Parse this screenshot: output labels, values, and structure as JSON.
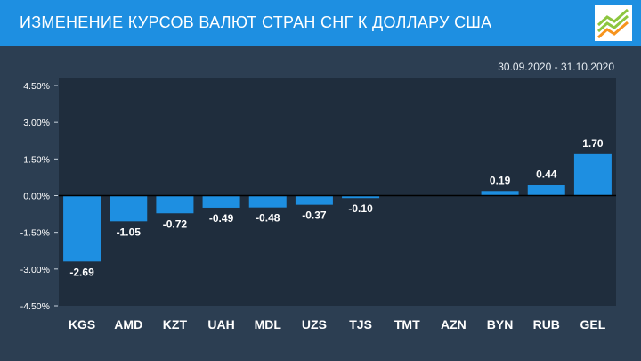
{
  "header": {
    "title": "ИЗМЕНЕНИЕ КУРСОВ ВАЛЮТ СТРАН СНГ К ДОЛЛАРУ США",
    "logo_icon": "rising-lines-logo-icon"
  },
  "period": "30.09.2020 - 31.10.2020",
  "colors": {
    "header_bg": "#1e8fe1",
    "page_bg": "#2c3e52",
    "plot_bg": "#1f2d3d",
    "bar": "#1e8fe1",
    "text": "#ffffff",
    "logo_green": "#8dc63f",
    "logo_orange": "#f7941d"
  },
  "chart_data": {
    "type": "bar",
    "categories": [
      "KGS",
      "AMD",
      "KZT",
      "UAH",
      "MDL",
      "UZS",
      "TJS",
      "TMT",
      "AZN",
      "BYN",
      "RUB",
      "GEL"
    ],
    "values": [
      -2.69,
      -1.05,
      -0.72,
      -0.49,
      -0.48,
      -0.37,
      -0.1,
      null,
      null,
      0.19,
      0.44,
      1.7
    ],
    "value_labels": [
      "-2.69",
      "-1.05",
      "-0.72",
      "-0.49",
      "-0.48",
      "-0.37",
      "-0.10",
      "",
      "",
      "0.19",
      "0.44",
      "1.70"
    ],
    "yticks": [
      4.5,
      3.0,
      1.5,
      0.0,
      -1.5,
      -3.0,
      -4.5
    ],
    "ytick_labels": [
      "4.50%",
      "3.00%",
      "1.50%",
      "0.00%",
      "-1.50%",
      "-3.00%",
      "-4.50%"
    ],
    "ylim": [
      -4.5,
      4.5
    ],
    "grid": false,
    "legend": "none"
  }
}
